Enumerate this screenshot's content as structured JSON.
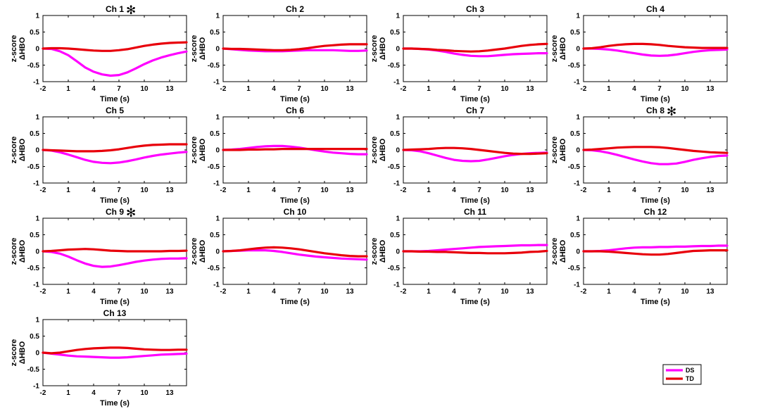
{
  "chart_data": {
    "type": "line",
    "x_ticks": [
      -2,
      1,
      4,
      7,
      10,
      13
    ],
    "xlim": [
      -2,
      15
    ],
    "y_ticks": [
      -1,
      -0.5,
      0,
      0.5,
      1
    ],
    "y_tick_labels": [
      "-1",
      "-0.5",
      "0",
      "0.5",
      "1"
    ],
    "ylim": [
      -1,
      1
    ],
    "xlabel": "Time (s)",
    "ylabel_line1": "z-score",
    "ylabel_line2": "ΔHBO",
    "x": [
      -2,
      -1,
      0,
      1,
      2,
      3,
      4,
      5,
      6,
      7,
      8,
      9,
      10,
      11,
      12,
      13,
      14,
      15
    ],
    "series_colors": {
      "DS": "#ff00ff",
      "TD": "#e8000b"
    },
    "legend": [
      {
        "name": "DS",
        "color": "#ff00ff"
      },
      {
        "name": "TD",
        "color": "#e8000b"
      }
    ],
    "significance_marker": "✻",
    "panels": [
      {
        "title": "Ch 1",
        "significant": true,
        "DS": [
          0,
          -0.01,
          -0.08,
          -0.2,
          -0.38,
          -0.57,
          -0.7,
          -0.78,
          -0.82,
          -0.8,
          -0.72,
          -0.6,
          -0.47,
          -0.36,
          -0.27,
          -0.2,
          -0.14,
          -0.09
        ],
        "TD": [
          0,
          0.01,
          0.01,
          0,
          -0.02,
          -0.04,
          -0.06,
          -0.07,
          -0.07,
          -0.05,
          -0.02,
          0.03,
          0.08,
          0.12,
          0.15,
          0.17,
          0.18,
          0.19
        ]
      },
      {
        "title": "Ch 2",
        "significant": false,
        "DS": [
          0,
          -0.02,
          -0.04,
          -0.06,
          -0.07,
          -0.08,
          -0.08,
          -0.08,
          -0.07,
          -0.06,
          -0.05,
          -0.05,
          -0.05,
          -0.05,
          -0.06,
          -0.07,
          -0.07,
          -0.06
        ],
        "TD": [
          0,
          -0.01,
          -0.01,
          -0.02,
          -0.03,
          -0.04,
          -0.05,
          -0.05,
          -0.04,
          -0.02,
          0.01,
          0.05,
          0.08,
          0.1,
          0.12,
          0.13,
          0.13,
          0.13
        ]
      },
      {
        "title": "Ch 3",
        "significant": false,
        "DS": [
          0,
          0,
          -0.01,
          -0.03,
          -0.06,
          -0.1,
          -0.15,
          -0.19,
          -0.22,
          -0.23,
          -0.23,
          -0.21,
          -0.19,
          -0.17,
          -0.16,
          -0.15,
          -0.14,
          -0.14
        ],
        "TD": [
          0,
          0,
          -0.01,
          -0.02,
          -0.04,
          -0.05,
          -0.07,
          -0.08,
          -0.09,
          -0.08,
          -0.06,
          -0.03,
          0,
          0.04,
          0.08,
          0.11,
          0.13,
          0.14
        ]
      },
      {
        "title": "Ch 4",
        "significant": false,
        "DS": [
          0,
          0,
          -0.01,
          -0.03,
          -0.06,
          -0.1,
          -0.14,
          -0.18,
          -0.21,
          -0.22,
          -0.21,
          -0.18,
          -0.14,
          -0.1,
          -0.07,
          -0.05,
          -0.04,
          -0.03
        ],
        "TD": [
          0,
          0.01,
          0.04,
          0.08,
          0.11,
          0.13,
          0.14,
          0.14,
          0.13,
          0.11,
          0.08,
          0.06,
          0.04,
          0.03,
          0.02,
          0.02,
          0.02,
          0.02
        ]
      },
      {
        "title": "Ch 5",
        "significant": false,
        "DS": [
          0,
          -0.02,
          -0.07,
          -0.14,
          -0.22,
          -0.3,
          -0.36,
          -0.39,
          -0.4,
          -0.38,
          -0.34,
          -0.29,
          -0.23,
          -0.18,
          -0.14,
          -0.11,
          -0.08,
          -0.06
        ],
        "TD": [
          0,
          -0.01,
          -0.02,
          -0.03,
          -0.04,
          -0.04,
          -0.04,
          -0.03,
          -0.01,
          0.02,
          0.06,
          0.1,
          0.13,
          0.15,
          0.16,
          0.17,
          0.17,
          0.17
        ]
      },
      {
        "title": "Ch 6",
        "significant": false,
        "DS": [
          0,
          0.01,
          0.03,
          0.06,
          0.09,
          0.11,
          0.12,
          0.12,
          0.1,
          0.07,
          0.03,
          -0.01,
          -0.05,
          -0.08,
          -0.1,
          -0.12,
          -0.13,
          -0.13
        ],
        "TD": [
          0,
          0,
          0,
          0.01,
          0.01,
          0.02,
          0.02,
          0.03,
          0.03,
          0.03,
          0.03,
          0.03,
          0.03,
          0.03,
          0.03,
          0.03,
          0.03,
          0.03
        ]
      },
      {
        "title": "Ch 7",
        "significant": false,
        "DS": [
          0,
          -0.01,
          -0.04,
          -0.1,
          -0.17,
          -0.24,
          -0.3,
          -0.33,
          -0.34,
          -0.33,
          -0.29,
          -0.24,
          -0.19,
          -0.15,
          -0.12,
          -0.1,
          -0.09,
          -0.08
        ],
        "TD": [
          0,
          0.01,
          0.02,
          0.03,
          0.05,
          0.06,
          0.06,
          0.05,
          0.03,
          0,
          -0.03,
          -0.06,
          -0.09,
          -0.11,
          -0.12,
          -0.12,
          -0.11,
          -0.1
        ]
      },
      {
        "title": "Ch 8",
        "significant": true,
        "DS": [
          0,
          -0.01,
          -0.04,
          -0.09,
          -0.15,
          -0.22,
          -0.29,
          -0.35,
          -0.4,
          -0.43,
          -0.43,
          -0.41,
          -0.36,
          -0.3,
          -0.25,
          -0.21,
          -0.18,
          -0.17
        ],
        "TD": [
          0,
          0.01,
          0.03,
          0.05,
          0.07,
          0.08,
          0.09,
          0.09,
          0.09,
          0.08,
          0.06,
          0.03,
          0,
          -0.03,
          -0.05,
          -0.07,
          -0.08,
          -0.09
        ]
      },
      {
        "title": "Ch 9",
        "significant": true,
        "DS": [
          0,
          -0.02,
          -0.07,
          -0.16,
          -0.27,
          -0.37,
          -0.44,
          -0.47,
          -0.46,
          -0.42,
          -0.37,
          -0.32,
          -0.28,
          -0.25,
          -0.23,
          -0.22,
          -0.22,
          -0.21
        ],
        "TD": [
          0,
          0.01,
          0.03,
          0.05,
          0.06,
          0.07,
          0.06,
          0.04,
          0.02,
          0.01,
          0,
          0,
          0,
          0,
          0,
          0.01,
          0.01,
          0.02
        ]
      },
      {
        "title": "Ch 10",
        "significant": false,
        "DS": [
          0,
          0.01,
          0.02,
          0.03,
          0.03,
          0.03,
          0.01,
          -0.02,
          -0.06,
          -0.1,
          -0.13,
          -0.16,
          -0.18,
          -0.2,
          -0.22,
          -0.23,
          -0.24,
          -0.25
        ],
        "TD": [
          0,
          0.01,
          0.03,
          0.06,
          0.09,
          0.11,
          0.12,
          0.11,
          0.09,
          0.06,
          0.02,
          -0.02,
          -0.06,
          -0.09,
          -0.12,
          -0.14,
          -0.15,
          -0.15
        ]
      },
      {
        "title": "Ch 11",
        "significant": false,
        "DS": [
          0,
          0,
          0,
          0.01,
          0.03,
          0.05,
          0.07,
          0.09,
          0.11,
          0.13,
          0.14,
          0.15,
          0.16,
          0.17,
          0.18,
          0.18,
          0.19,
          0.19
        ],
        "TD": [
          0,
          0,
          -0.01,
          -0.01,
          -0.02,
          -0.02,
          -0.03,
          -0.04,
          -0.05,
          -0.05,
          -0.06,
          -0.06,
          -0.06,
          -0.05,
          -0.04,
          -0.02,
          -0.01,
          0.01
        ]
      },
      {
        "title": "Ch 12",
        "significant": false,
        "DS": [
          0,
          0,
          0.01,
          0.03,
          0.06,
          0.09,
          0.11,
          0.12,
          0.12,
          0.13,
          0.13,
          0.14,
          0.14,
          0.15,
          0.16,
          0.16,
          0.17,
          0.17
        ],
        "TD": [
          0,
          0,
          0,
          -0.01,
          -0.03,
          -0.05,
          -0.07,
          -0.09,
          -0.1,
          -0.1,
          -0.08,
          -0.05,
          -0.02,
          0.01,
          0.02,
          0.03,
          0.03,
          0.03
        ]
      },
      {
        "title": "Ch 13",
        "significant": false,
        "DS": [
          0,
          -0.03,
          -0.06,
          -0.09,
          -0.11,
          -0.12,
          -0.13,
          -0.14,
          -0.15,
          -0.15,
          -0.14,
          -0.12,
          -0.1,
          -0.08,
          -0.06,
          -0.05,
          -0.04,
          -0.03
        ],
        "TD": [
          0,
          -0.02,
          0,
          0.04,
          0.08,
          0.11,
          0.13,
          0.14,
          0.15,
          0.15,
          0.14,
          0.12,
          0.1,
          0.09,
          0.08,
          0.08,
          0.09,
          0.09
        ]
      }
    ]
  }
}
